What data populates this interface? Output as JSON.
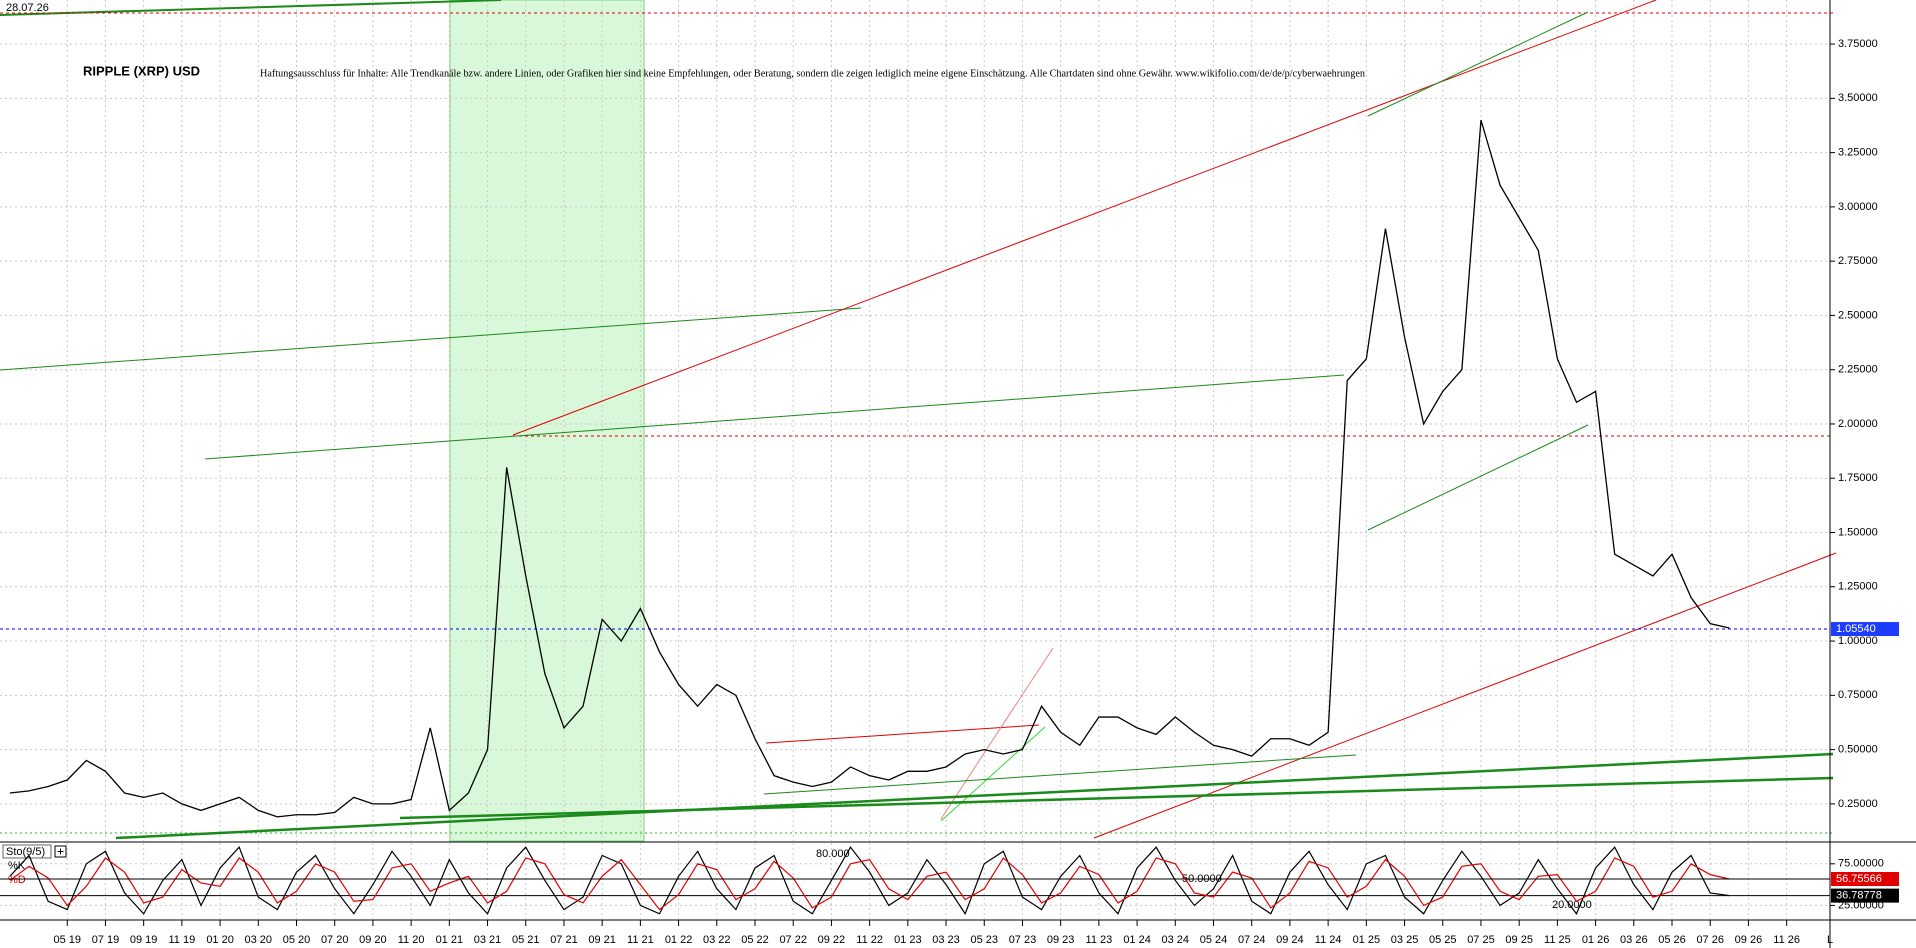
{
  "chart_data": [
    {
      "type": "line",
      "title": "RIPPLE (XRP) USD",
      "subtitle": "Haftungsausschluss für Inhalte: Alle Trendkanäle bzw. andere Linien, oder Grafiken hier sind keine Empfehlungen, oder Beratung, sondern die zeigen lediglich meine eigene Einschätzung. Alle Chartdaten sind ohne Gewähr.  www.wikifolio.com/de/de/p/cyberwaehrungen",
      "date": "28.07.26",
      "corner_label": "L",
      "x": [
        -3,
        -2,
        -1,
        0,
        1,
        2,
        3,
        4,
        5,
        6,
        7,
        8,
        9,
        10,
        11,
        12,
        13,
        14,
        15,
        16,
        17,
        18,
        19,
        20,
        21,
        22,
        23,
        24,
        25,
        26,
        27,
        28,
        29,
        30,
        31,
        32,
        33,
        34,
        35,
        36,
        37,
        38,
        39,
        40,
        41,
        42,
        43,
        44,
        45,
        46,
        47,
        48,
        49,
        50,
        51,
        52,
        53,
        54,
        55,
        56,
        57,
        58,
        59,
        60,
        61,
        62,
        63,
        64,
        65,
        66,
        67,
        68,
        69,
        70,
        71,
        72,
        73,
        74,
        75,
        76,
        77,
        78,
        79,
        80,
        81,
        82,
        83,
        84,
        85,
        86,
        87
      ],
      "values": [
        0.3,
        0.31,
        0.33,
        0.36,
        0.45,
        0.4,
        0.3,
        0.28,
        0.3,
        0.25,
        0.22,
        0.25,
        0.28,
        0.22,
        0.19,
        0.2,
        0.2,
        0.21,
        0.28,
        0.25,
        0.25,
        0.27,
        0.6,
        0.22,
        0.3,
        0.5,
        1.8,
        1.3,
        0.85,
        0.6,
        0.7,
        1.1,
        1.0,
        1.15,
        0.95,
        0.8,
        0.7,
        0.8,
        0.75,
        0.55,
        0.38,
        0.35,
        0.33,
        0.35,
        0.42,
        0.38,
        0.36,
        0.4,
        0.4,
        0.42,
        0.48,
        0.5,
        0.48,
        0.5,
        0.7,
        0.58,
        0.52,
        0.65,
        0.65,
        0.6,
        0.57,
        0.65,
        0.58,
        0.52,
        0.5,
        0.47,
        0.55,
        0.55,
        0.52,
        0.58,
        2.2,
        2.3,
        2.9,
        2.4,
        2.0,
        2.15,
        2.25,
        3.4,
        3.1,
        2.95,
        2.8,
        2.3,
        2.1,
        2.15,
        1.4,
        1.35,
        1.3,
        1.4,
        1.2,
        1.08,
        1.06
      ],
      "color": "#000000",
      "current_price": {
        "value": 1.0554,
        "label": "1.05540"
      },
      "xlim": [
        -3.52,
        92.27
      ],
      "ylim": [
        0.079,
        3.953
      ],
      "xticks": [
        {
          "value": 0,
          "label": "05 19"
        },
        {
          "value": 2,
          "label": "07 19"
        },
        {
          "value": 4,
          "label": "09 19"
        },
        {
          "value": 6,
          "label": "11 19"
        },
        {
          "value": 8,
          "label": "01 20"
        },
        {
          "value": 10,
          "label": "03 20"
        },
        {
          "value": 12,
          "label": "05 20"
        },
        {
          "value": 14,
          "label": "07 20"
        },
        {
          "value": 16,
          "label": "09 20"
        },
        {
          "value": 18,
          "label": "11 20"
        },
        {
          "value": 20,
          "label": "01 21"
        },
        {
          "value": 22,
          "label": "03 21"
        },
        {
          "value": 24,
          "label": "05 21"
        },
        {
          "value": 26,
          "label": "07 21"
        },
        {
          "value": 28,
          "label": "09 21"
        },
        {
          "value": 30,
          "label": "11 21"
        },
        {
          "value": 32,
          "label": "01 22"
        },
        {
          "value": 34,
          "label": "03 22"
        },
        {
          "value": 36,
          "label": "05 22"
        },
        {
          "value": 38,
          "label": "07 22"
        },
        {
          "value": 40,
          "label": "09 22"
        },
        {
          "value": 42,
          "label": "11 22"
        },
        {
          "value": 44,
          "label": "01 23"
        },
        {
          "value": 46,
          "label": "03 23"
        },
        {
          "value": 48,
          "label": "05 23"
        },
        {
          "value": 50,
          "label": "07 23"
        },
        {
          "value": 52,
          "label": "09 23"
        },
        {
          "value": 54,
          "label": "11 23"
        },
        {
          "value": 56,
          "label": "01 24"
        },
        {
          "value": 58,
          "label": "03 24"
        },
        {
          "value": 60,
          "label": "05 24"
        },
        {
          "value": 62,
          "label": "07 24"
        },
        {
          "value": 64,
          "label": "09 24"
        },
        {
          "value": 66,
          "label": "11 24"
        },
        {
          "value": 68,
          "label": "01 25"
        },
        {
          "value": 70,
          "label": "03 25"
        },
        {
          "value": 72,
          "label": "05 25"
        },
        {
          "value": 74,
          "label": "07 25"
        },
        {
          "value": 76,
          "label": "09 25"
        },
        {
          "value": 78,
          "label": "11 25"
        },
        {
          "value": 80,
          "label": "01 26"
        },
        {
          "value": 82,
          "label": "03 26"
        },
        {
          "value": 84,
          "label": "05 26"
        },
        {
          "value": 86,
          "label": "07 26"
        },
        {
          "value": 88,
          "label": "09 26"
        },
        {
          "value": 90,
          "label": "11 26"
        }
      ],
      "yticks": [
        {
          "value": 0.25,
          "label": "0.25000"
        },
        {
          "value": 0.5,
          "label": "0.50000"
        },
        {
          "value": 0.75,
          "label": "0.75000"
        },
        {
          "value": 1,
          "label": "1.00000"
        },
        {
          "value": 1.25,
          "label": "1.25000"
        },
        {
          "value": 1.5,
          "label": "1.50000"
        },
        {
          "value": 1.75,
          "label": "1.75000"
        },
        {
          "value": 2,
          "label": "2.00000"
        },
        {
          "value": 2.25,
          "label": "2.25000"
        },
        {
          "value": 2.5,
          "label": "2.50000"
        },
        {
          "value": 2.75,
          "label": "2.75000"
        },
        {
          "value": 3,
          "label": "3.00000"
        },
        {
          "value": 3.25,
          "label": "3.25000"
        },
        {
          "value": 3.5,
          "label": "3.50000"
        },
        {
          "value": 3.75,
          "label": "3.75000"
        }
      ],
      "grid": true
    },
    {
      "type": "line",
      "title": "Sto(9/5)",
      "annotations": [
        "80.000",
        "50.0000",
        "20.0000"
      ],
      "series": [
        {
          "name": "%K",
          "color": "#000000",
          "values": [
            60,
            85,
            30,
            20,
            75,
            90,
            40,
            15,
            55,
            80,
            25,
            70,
            95,
            35,
            20,
            65,
            85,
            45,
            15,
            50,
            90,
            60,
            25,
            80,
            40,
            15,
            70,
            95,
            55,
            20,
            35,
            85,
            75,
            25,
            15,
            60,
            90,
            45,
            20,
            70,
            85,
            30,
            15,
            55,
            95,
            65,
            25,
            40,
            80,
            50,
            15,
            75,
            90,
            35,
            20,
            60,
            85,
            40,
            15,
            70,
            95,
            55,
            25,
            45,
            85,
            30,
            15,
            65,
            90,
            50,
            20,
            75,
            85,
            35,
            15,
            55,
            90,
            60,
            25,
            40,
            80,
            45,
            15,
            70,
            95,
            50,
            20,
            65,
            85,
            40,
            36.78778
          ]
        },
        {
          "name": "%D",
          "color": "#e00000",
          "values": [
            55,
            72,
            58,
            25,
            48,
            82,
            65,
            28,
            35,
            68,
            52,
            48,
            82,
            65,
            28,
            42,
            75,
            65,
            30,
            32,
            70,
            75,
            42,
            52,
            60,
            28,
            42,
            82,
            75,
            38,
            28,
            60,
            80,
            50,
            20,
            38,
            75,
            68,
            32,
            45,
            78,
            58,
            22,
            35,
            75,
            80,
            45,
            32,
            60,
            65,
            32,
            45,
            82,
            62,
            28,
            40,
            72,
            62,
            28,
            42,
            82,
            75,
            40,
            35,
            65,
            58,
            22,
            40,
            78,
            70,
            35,
            48,
            80,
            60,
            25,
            35,
            72,
            75,
            42,
            32,
            60,
            62,
            30,
            42,
            82,
            72,
            35,
            42,
            75,
            62,
            56.75566
          ]
        }
      ],
      "ylim": [
        8.7,
        100
      ],
      "yticks": [
        {
          "value": 25,
          "label": "25.00000"
        },
        {
          "value": 75,
          "label": "75.00000"
        }
      ],
      "grid": true
    }
  ]
}
